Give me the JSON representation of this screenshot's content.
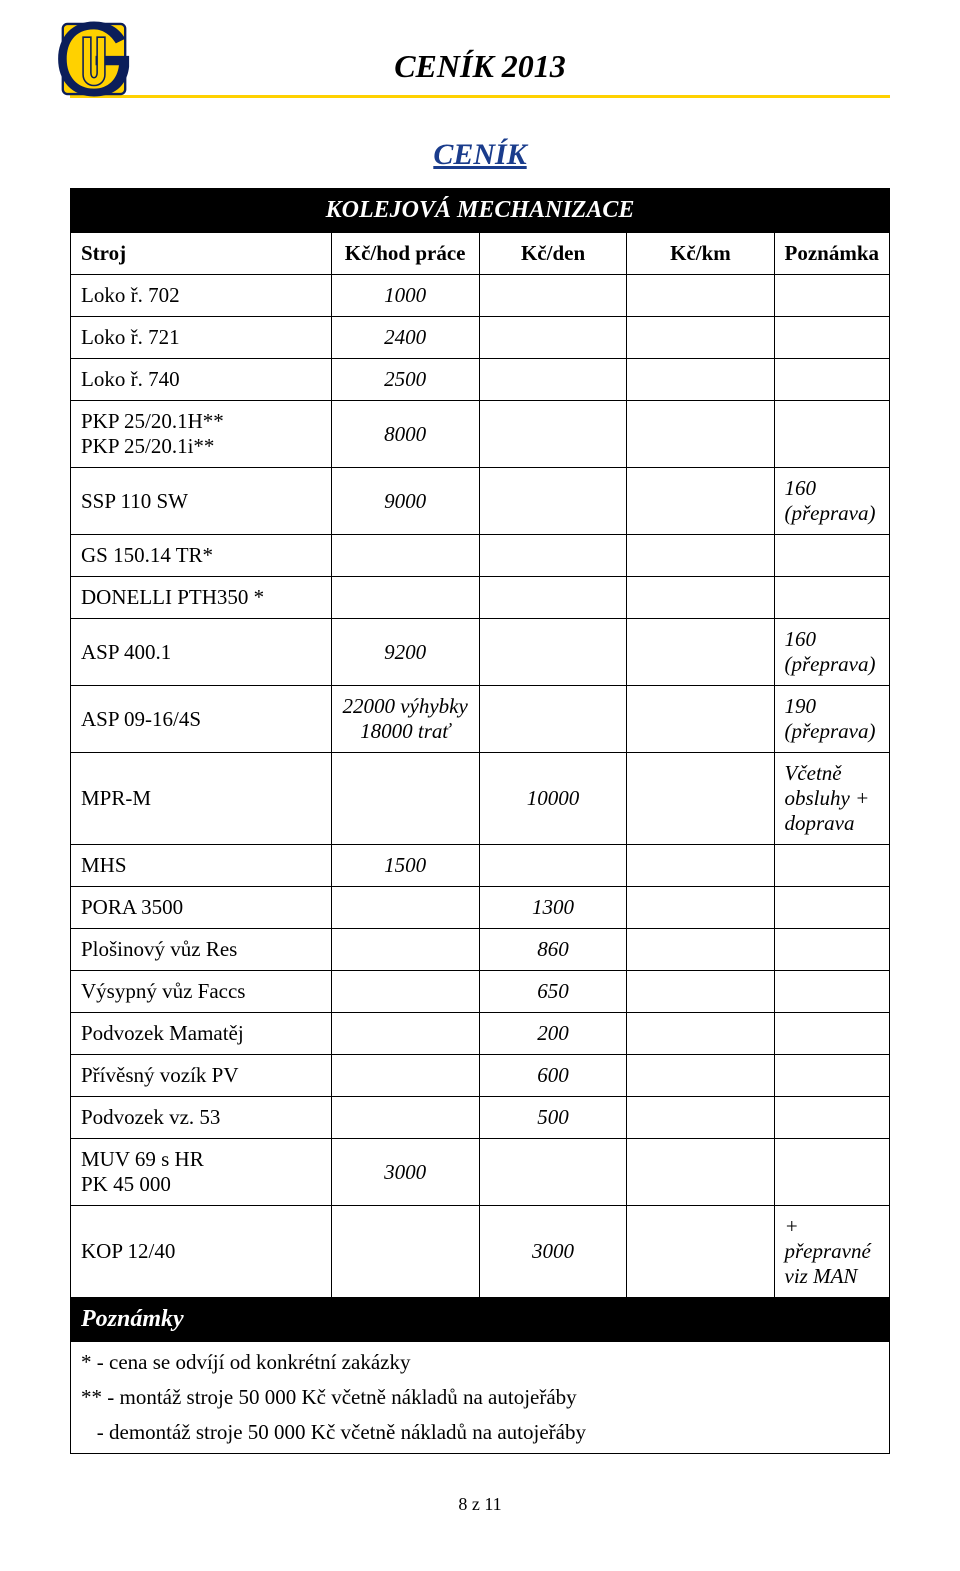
{
  "colors": {
    "accent_yellow": "#ffd100",
    "section_blue": "#1a3c8c",
    "logo_navy": "#0b1e5a",
    "band_bg": "#000000",
    "band_fg": "#ffffff"
  },
  "header": {
    "title": "CENÍK 2013"
  },
  "section": {
    "title": "CENÍK"
  },
  "table": {
    "band_title": "KOLEJOVÁ MECHANIZACE",
    "columns": [
      "Stroj",
      "Kč/hod práce",
      "Kč/den",
      "Kč/km",
      "Poznámka"
    ],
    "notes_label": "Poznámky",
    "rows": [
      {
        "label": "Loko ř. 702",
        "c1": "1000",
        "c2": "",
        "c3": "",
        "note": ""
      },
      {
        "label": "Loko ř. 721",
        "c1": "2400",
        "c2": "",
        "c3": "",
        "note": ""
      },
      {
        "label": "Loko ř. 740",
        "c1": "2500",
        "c2": "",
        "c3": "",
        "note": ""
      },
      {
        "label": "PKP 25/20.1H**\nPKP 25/20.1i**",
        "c1": "8000",
        "c2": "",
        "c3": "",
        "note": ""
      },
      {
        "label": "SSP 110 SW",
        "c1": "9000",
        "c2": "",
        "c3": "",
        "note": "160 (přeprava)"
      },
      {
        "label": "GS 150.14 TR*",
        "c1": "",
        "c2": "",
        "c3": "",
        "note": ""
      },
      {
        "label": "DONELLI PTH350 *",
        "c1": "",
        "c2": "",
        "c3": "",
        "note": ""
      },
      {
        "label": "ASP 400.1",
        "c1": "9200",
        "c2": "",
        "c3": "",
        "note": "160 (přeprava)"
      },
      {
        "label": "ASP 09-16/4S",
        "c1": "22000 výhybky\n18000 trať",
        "c2": "",
        "c3": "",
        "note": "190 (přeprava)"
      },
      {
        "label": "MPR-M",
        "c1": "",
        "c2": "10000",
        "c3": "",
        "note": "Včetně obsluhy + doprava"
      },
      {
        "label": "MHS",
        "c1": "1500",
        "c2": "",
        "c3": "",
        "note": ""
      },
      {
        "label": "PORA 3500",
        "c1": "",
        "c2": "1300",
        "c3": "",
        "note": ""
      },
      {
        "label": "Plošinový vůz Res",
        "c1": "",
        "c2": "860",
        "c3": "",
        "note": ""
      },
      {
        "label": "Výsypný vůz Faccs",
        "c1": "",
        "c2": "650",
        "c3": "",
        "note": ""
      },
      {
        "label": "Podvozek Mamatěj",
        "c1": "",
        "c2": "200",
        "c3": "",
        "note": ""
      },
      {
        "label": "Přívěsný vozík PV",
        "c1": "",
        "c2": "600",
        "c3": "",
        "note": ""
      },
      {
        "label": "Podvozek vz. 53",
        "c1": "",
        "c2": "500",
        "c3": "",
        "note": ""
      },
      {
        "label": "MUV 69 s HR\nPK 45 000",
        "c1": "3000",
        "c2": "",
        "c3": "",
        "note": ""
      },
      {
        "label": "KOP 12/40",
        "c1": "",
        "c2": "3000",
        "c3": "",
        "note": "+ přepravné viz MAN"
      }
    ],
    "footnotes": [
      "* - cena se odvíjí od konkrétní zakázky",
      "** - montáž stroje 50 000 Kč včetně nákladů na autojeřáby",
      "   - demontáž stroje 50 000 Kč včetně nákladů na autojeřáby"
    ]
  },
  "page_num": "8 z 11"
}
